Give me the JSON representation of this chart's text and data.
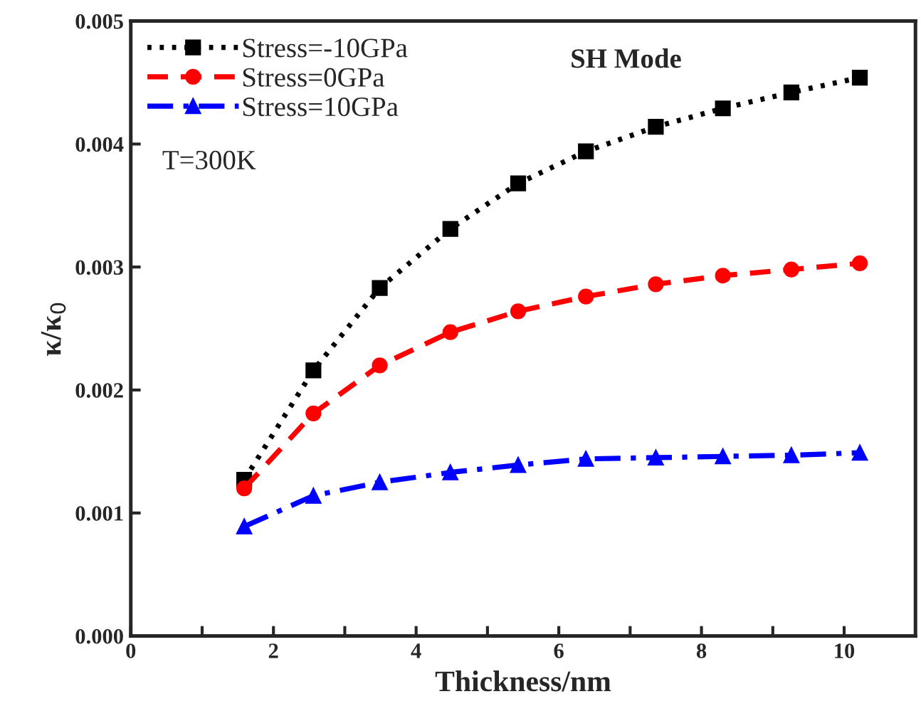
{
  "chart_data": {
    "type": "line",
    "xlabel": "Thickness/nm",
    "ylabel": "κ/κ$_{0}$",
    "x": [
      1.59,
      2.56,
      3.49,
      4.48,
      5.43,
      6.38,
      7.36,
      8.3,
      9.26,
      10.22
    ],
    "series": [
      {
        "name": "Stress=-10GPa",
        "color": "#000000",
        "marker": "square",
        "line_style": "dotted",
        "values": [
          0.00127,
          0.00216,
          0.00283,
          0.00331,
          0.00368,
          0.00394,
          0.00414,
          0.00429,
          0.00442,
          0.00454
        ]
      },
      {
        "name": "Stress=0GPa",
        "color": "#ff0000",
        "marker": "circle",
        "line_style": "dashed",
        "values": [
          0.0012,
          0.00181,
          0.0022,
          0.00247,
          0.00264,
          0.00276,
          0.00286,
          0.00293,
          0.00298,
          0.00303
        ]
      },
      {
        "name": "Stress=10GPa",
        "color": "#0000ff",
        "marker": "triangle",
        "line_style": "dashdot",
        "values": [
          0.00089,
          0.00114,
          0.00125,
          0.00133,
          0.00139,
          0.00144,
          0.00145,
          0.00146,
          0.00147,
          0.00149
        ]
      }
    ],
    "annotations": [
      "SH Mode",
      "T=300K"
    ],
    "xlim": [
      0,
      11
    ],
    "ylim": [
      0,
      0.005
    ],
    "xticks": [
      0,
      {
        "value": 1,
        "label": null
      },
      2,
      {
        "value": 3,
        "label": null
      },
      4,
      {
        "value": 5,
        "label": null
      },
      6,
      {
        "value": 7,
        "label": null
      },
      8,
      {
        "value": 9,
        "label": null
      },
      10
    ],
    "yticks": [
      {
        "value": 0,
        "label": "0.000"
      },
      {
        "value": 0.001,
        "label": "0.001"
      },
      {
        "value": 0.002,
        "label": "0.002"
      },
      {
        "value": 0.003,
        "label": "0.003"
      },
      {
        "value": 0.004,
        "label": "0.004"
      },
      {
        "value": 0.005,
        "label": "0.005"
      }
    ],
    "grid": false,
    "legend": "top left"
  }
}
